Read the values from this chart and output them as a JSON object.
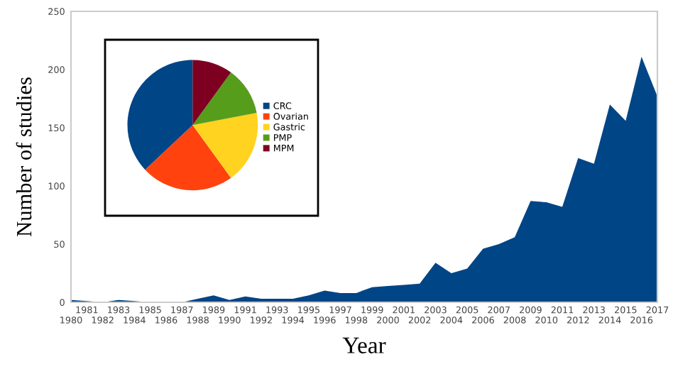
{
  "chart_data": [
    {
      "type": "area",
      "xlabel": "Year",
      "ylabel": "Number of studies",
      "color": "#004586",
      "x": [
        1980,
        1981,
        1982,
        1983,
        1984,
        1985,
        1986,
        1987,
        1988,
        1989,
        1990,
        1991,
        1992,
        1993,
        1994,
        1995,
        1996,
        1997,
        1998,
        1999,
        2000,
        2001,
        2002,
        2003,
        2004,
        2005,
        2006,
        2007,
        2008,
        2009,
        2010,
        2011,
        2012,
        2013,
        2014,
        2015,
        2016,
        2017
      ],
      "values": [
        2,
        1,
        0,
        2,
        1,
        0,
        0,
        0,
        3,
        6,
        2,
        5,
        3,
        3,
        3,
        6,
        10,
        8,
        8,
        13,
        14,
        15,
        16,
        34,
        25,
        29,
        46,
        50,
        56,
        87,
        86,
        82,
        124,
        119,
        170,
        156,
        211,
        177
      ],
      "xlim": [
        1980,
        2017
      ],
      "ylim": [
        0,
        250
      ],
      "xticks": [
        1981,
        1983,
        1985,
        1987,
        1989,
        1991,
        1993,
        1995,
        1997,
        1999,
        2001,
        2003,
        2005,
        2007,
        2009,
        2011,
        2013,
        2015,
        2017
      ],
      "x2lim": [
        1980,
        2017
      ],
      "x2ticks": [
        1980,
        1982,
        1984,
        1986,
        1988,
        1990,
        1992,
        1994,
        1996,
        1998,
        2000,
        2002,
        2004,
        2006,
        2008,
        2010,
        2012,
        2014,
        2016
      ],
      "yticks": [
        0,
        50,
        100,
        150,
        200,
        250
      ]
    },
    {
      "type": "pie",
      "categories": [
        "CRC",
        "Ovarian",
        "Gastric",
        "PMP",
        "MPM"
      ],
      "values": [
        37,
        23,
        18,
        12,
        10
      ],
      "colors": [
        "#004586",
        "#ff420e",
        "#ffd320",
        "#579d1c",
        "#7e0021"
      ],
      "legend": "right"
    }
  ]
}
